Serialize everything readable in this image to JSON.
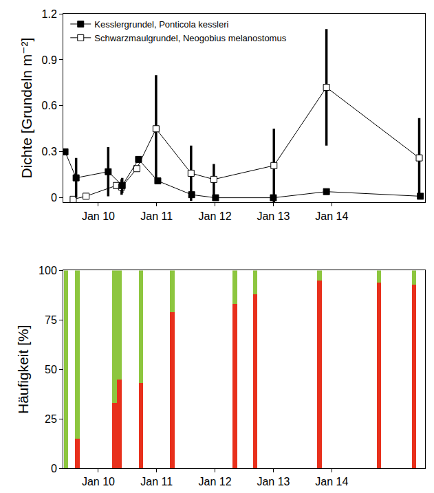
{
  "chart_data": [
    {
      "type": "line",
      "ylabel": "Dichte [Grundeln m⁻²]",
      "xlim": [
        2009.4,
        2015.6
      ],
      "xticks": [
        {
          "value": 2010,
          "label": "Jan 10"
        },
        {
          "value": 2011,
          "label": "Jan 11"
        },
        {
          "value": 2012,
          "label": "Jan 12"
        },
        {
          "value": 2013,
          "label": "Jan 13"
        },
        {
          "value": 2014,
          "label": "Jan 14"
        }
      ],
      "ylim": [
        -0.03,
        1.2
      ],
      "yticks": [
        0,
        0.3,
        0.6,
        0.9,
        1.2
      ],
      "grid": false,
      "legend": "top-left",
      "series": [
        {
          "name": "Schwarzmaulgrundel, Neogobius melanostomus",
          "color": "#000000",
          "marker": "square-open",
          "line_style": "solid",
          "x": [
            2009.57,
            2009.79,
            2010.31,
            2010.4,
            2010.66,
            2010.99,
            2011.59,
            2011.98,
            2013.01,
            2013.91,
            2015.5
          ],
          "values": [
            -0.01,
            0.01,
            0.08,
            0.07,
            0.19,
            0.45,
            0.16,
            0.12,
            0.21,
            0.72,
            0.26
          ],
          "error": [
            0,
            0,
            0,
            0.05,
            0,
            0.35,
            0.18,
            0.1,
            0.24,
            0.38,
            0.26
          ]
        },
        {
          "name": "Kesslergrundel, Ponticola kessleri",
          "color": "#000000",
          "marker": "square",
          "line_style": "solid",
          "x": [
            2009.43,
            2009.62,
            2010.17,
            2010.41,
            2010.69,
            2011.02,
            2011.6,
            2012.01,
            2013.0,
            2013.91,
            2015.52
          ],
          "values": [
            0.3,
            0.13,
            0.17,
            0.08,
            0.25,
            0.11,
            0.02,
            0.0,
            0.0,
            0.04,
            0.01
          ],
          "error": [
            0,
            0.13,
            0.16,
            0.05,
            0.02,
            0,
            0,
            0,
            0,
            0,
            0
          ]
        }
      ]
    },
    {
      "type": "bar",
      "stacked": true,
      "ylabel": "Häufigkeit [%]",
      "xlim": [
        2009.4,
        2015.6
      ],
      "xticks": [
        {
          "value": 2010,
          "label": "Jan 10"
        },
        {
          "value": 2011,
          "label": "Jan 11"
        },
        {
          "value": 2012,
          "label": "Jan 12"
        },
        {
          "value": 2013,
          "label": "Jan 13"
        },
        {
          "value": 2014,
          "label": "Jan 14"
        }
      ],
      "ylim": [
        0,
        100
      ],
      "yticks": [
        0,
        25,
        50,
        75,
        100
      ],
      "grid": false,
      "x": [
        2009.45,
        2009.64,
        2010.28,
        2010.36,
        2010.73,
        2011.27,
        2012.34,
        2012.69,
        2013.79,
        2014.81,
        2015.41
      ],
      "series": [
        {
          "color": "#e8301c",
          "values": [
            0,
            15,
            33,
            45,
            43,
            79,
            83,
            88,
            95,
            94,
            93
          ]
        },
        {
          "color": "#8dc63f",
          "values": [
            100,
            85,
            67,
            55,
            57,
            21,
            17,
            12,
            5,
            6,
            7
          ]
        }
      ]
    }
  ]
}
